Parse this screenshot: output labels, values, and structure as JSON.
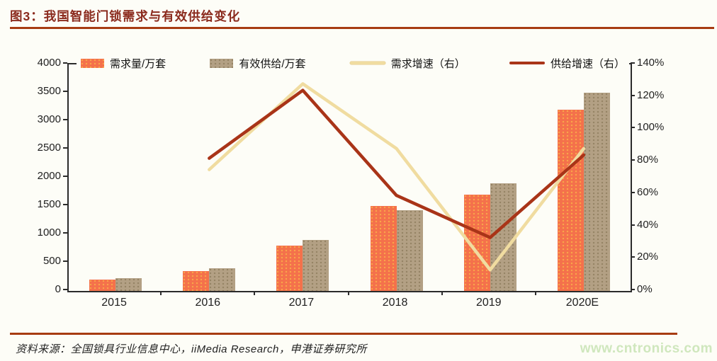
{
  "header": {
    "title": "图3：我国智能门锁需求与有效供给变化"
  },
  "footer": {
    "source": "资料来源：全国锁具行业信息中心，iiMedia Research，申港证券研究所",
    "watermark": "www.cntronics.com"
  },
  "colors": {
    "title": "#8b2b1e",
    "rule": "#a73c12",
    "demand_bar": "#f4714b",
    "supply_bar": "#b3a084",
    "demand_growth_line": "#f0dca0",
    "supply_growth_line": "#a93418",
    "axis": "#2b2b2b",
    "watermark": "#cfe7bd"
  },
  "chart_data": {
    "type": "bar",
    "subtype": "combo-bar-line-dual-axis",
    "title": "图3：我国智能门锁需求与有效供给变化",
    "categories": [
      "2015",
      "2016",
      "2017",
      "2018",
      "2019",
      "2020E"
    ],
    "bar_series": [
      {
        "name": "需求量/万套",
        "axis": "left",
        "color": "#f4714b",
        "values": [
          200,
          350,
          800,
          1500,
          1700,
          3200
        ]
      },
      {
        "name": "有效供给/万套",
        "axis": "left",
        "color": "#b3a084",
        "values": [
          220,
          400,
          900,
          1430,
          1900,
          3500
        ]
      }
    ],
    "line_series": [
      {
        "name": "需求增速（右）",
        "axis": "right",
        "color": "#f0dca0",
        "values": [
          null,
          75,
          128,
          88,
          13,
          88
        ]
      },
      {
        "name": "供给增速（右）",
        "axis": "right",
        "color": "#a93418",
        "values": [
          null,
          82,
          124,
          59,
          33,
          84
        ]
      }
    ],
    "left_axis": {
      "min": 0,
      "max": 4000,
      "step": 500,
      "ticks": [
        "0",
        "500",
        "1000",
        "1500",
        "2000",
        "2500",
        "3000",
        "3500",
        "4000"
      ]
    },
    "right_axis": {
      "min": 0,
      "max": 140,
      "step": 20,
      "ticks": [
        "0%",
        "20%",
        "40%",
        "60%",
        "80%",
        "100%",
        "120%",
        "140%"
      ]
    },
    "grid": false,
    "legend_position": "top"
  }
}
